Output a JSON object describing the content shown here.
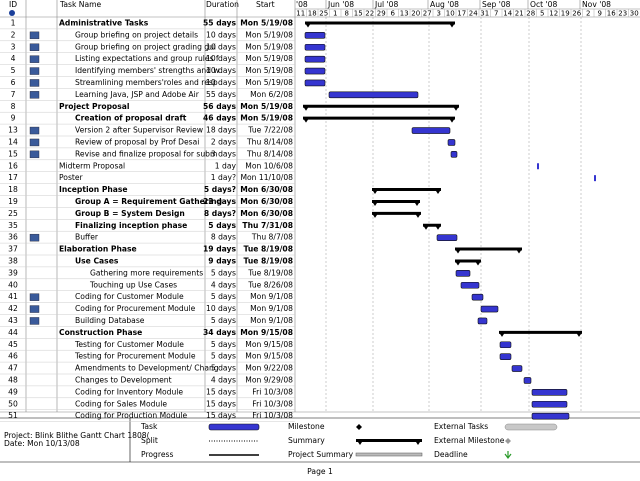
{
  "header": {
    "id": "ID",
    "task_name": "Task Name",
    "duration": "Duration",
    "start": "Start",
    "months": [
      "'08",
      "Jun '08",
      "Jul '08",
      "Aug '08",
      "Sep '08",
      "Oct '08",
      "Nov '08"
    ],
    "weeks": [
      "11",
      "18",
      "25",
      "1",
      "8",
      "15",
      "22",
      "29",
      "6",
      "13",
      "20",
      "27",
      "3",
      "10",
      "17",
      "24",
      "31",
      "7",
      "14",
      "21",
      "28",
      "5",
      "12",
      "19",
      "26",
      "2",
      "9",
      "16",
      "23",
      "30"
    ]
  },
  "rows": [
    {
      "id": "1",
      "name": "Administrative Tasks",
      "duration": "55 days",
      "start": "Mon 5/19/08"
    },
    {
      "id": "2",
      "name": "Group briefing on project details",
      "duration": "10 days",
      "start": "Mon 5/19/08"
    },
    {
      "id": "3",
      "name": "Group briefing on project grading gui",
      "duration": "10 days",
      "start": "Mon 5/19/08"
    },
    {
      "id": "4",
      "name": "Listing expectations and group rules f",
      "duration": "10 days",
      "start": "Mon 5/19/08"
    },
    {
      "id": "5",
      "name": "Identifying members' strengths and w",
      "duration": "10 days",
      "start": "Mon 5/19/08"
    },
    {
      "id": "6",
      "name": "Streamlining members'roles and resp",
      "duration": "10 days",
      "start": "Mon 5/19/08"
    },
    {
      "id": "7",
      "name": "Learning Java, JSP and Adobe Air",
      "duration": "55 days",
      "start": "Mon 6/2/08"
    },
    {
      "id": "8",
      "name": "Project Proposal",
      "duration": "56 days",
      "start": "Mon 5/19/08"
    },
    {
      "id": "9",
      "name": "Creation of proposal draft",
      "duration": "46 days",
      "start": "Mon 5/19/08"
    },
    {
      "id": "13",
      "name": "Version 2 after Supervisor Review",
      "duration": "18 days",
      "start": "Tue 7/22/08"
    },
    {
      "id": "14",
      "name": "Review of proposal by Prof Desai",
      "duration": "2 days",
      "start": "Thu 8/14/08"
    },
    {
      "id": "15",
      "name": "Revise and finalize proposal for subm",
      "duration": "3 days",
      "start": "Thu 8/14/08"
    },
    {
      "id": "16",
      "name": "Midterm Proposal",
      "duration": "1 day",
      "start": "Mon 10/6/08"
    },
    {
      "id": "17",
      "name": "Poster",
      "duration": "1 day?",
      "start": "Mon 11/10/08"
    },
    {
      "id": "18",
      "name": "Inception Phase",
      "duration": "5 days?",
      "start": "Mon 6/30/08"
    },
    {
      "id": "19",
      "name": "Group A = Requirement Gathering",
      "duration": "23 days",
      "start": "Mon 6/30/08"
    },
    {
      "id": "25",
      "name": "Group B = System Design",
      "duration": "8 days?",
      "start": "Mon 6/30/08"
    },
    {
      "id": "35",
      "name": "Finalizing inception phase",
      "duration": "5 days",
      "start": "Thu 7/31/08"
    },
    {
      "id": "36",
      "name": "Buffer",
      "duration": "8 days",
      "start": "Thu 8/7/08"
    },
    {
      "id": "37",
      "name": "Elaboration Phase",
      "duration": "19 days",
      "start": "Tue 8/19/08"
    },
    {
      "id": "38",
      "name": "Use Cases",
      "duration": "9 days",
      "start": "Tue 8/19/08"
    },
    {
      "id": "39",
      "name": "Gathering more requirements",
      "duration": "5 days",
      "start": "Tue 8/19/08"
    },
    {
      "id": "40",
      "name": "Touching up Use Cases",
      "duration": "4 days",
      "start": "Tue 8/26/08"
    },
    {
      "id": "41",
      "name": "Coding for Customer Module",
      "duration": "5 days",
      "start": "Mon 9/1/08"
    },
    {
      "id": "42",
      "name": "Coding for Procurement Module",
      "duration": "10 days",
      "start": "Mon 9/1/08"
    },
    {
      "id": "43",
      "name": "Building Database",
      "duration": "5 days",
      "start": "Mon 9/1/08"
    },
    {
      "id": "44",
      "name": "Construction Phase",
      "duration": "34 days",
      "start": "Mon 9/15/08"
    },
    {
      "id": "45",
      "name": "Testing for Customer Module",
      "duration": "5 days",
      "start": "Mon 9/15/08"
    },
    {
      "id": "46",
      "name": "Testing for Procurement Module",
      "duration": "5 days",
      "start": "Mon 9/15/08"
    },
    {
      "id": "47",
      "name": "Amendments to Development/ Chang",
      "duration": "5 days",
      "start": "Mon 9/22/08"
    },
    {
      "id": "48",
      "name": "Changes to Development",
      "duration": "4 days",
      "start": "Mon 9/29/08"
    },
    {
      "id": "49",
      "name": "Coding for Inventory Module",
      "duration": "15 days",
      "start": "Fri 10/3/08"
    },
    {
      "id": "50",
      "name": "Coding for Sales Module",
      "duration": "15 days",
      "start": "Fri 10/3/08"
    },
    {
      "id": "51",
      "name": "Coding for Production Module",
      "duration": "15 days",
      "start": "Fri 10/3/08"
    }
  ],
  "footer": {
    "project": "Project: Blink Blithe Gantt Chart 1808(",
    "date": "Date: Mon 10/13/08"
  },
  "legend": {
    "task": "Task",
    "split": "Split",
    "progress": "Progress",
    "milestone": "Milestone",
    "summary": "Summary",
    "project_summary": "Project Summary",
    "external_tasks": "External Tasks",
    "external_milestone": "External Milestone",
    "deadline": "Deadline"
  },
  "page": "Page 1"
}
